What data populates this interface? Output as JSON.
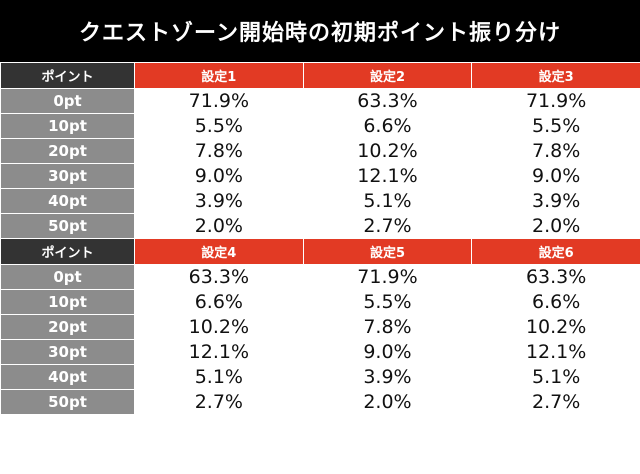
{
  "title": "クエストゾーン開始時の初期ポイント振り分け",
  "row_header_label": "ポイント",
  "blocks": [
    {
      "settings": [
        "設定1",
        "設定2",
        "設定3"
      ],
      "rows": [
        {
          "label": "0pt",
          "values": [
            "71.9%",
            "63.3%",
            "71.9%"
          ]
        },
        {
          "label": "10pt",
          "values": [
            "5.5%",
            "6.6%",
            "5.5%"
          ]
        },
        {
          "label": "20pt",
          "values": [
            "7.8%",
            "10.2%",
            "7.8%"
          ]
        },
        {
          "label": "30pt",
          "values": [
            "9.0%",
            "12.1%",
            "9.0%"
          ]
        },
        {
          "label": "40pt",
          "values": [
            "3.9%",
            "5.1%",
            "3.9%"
          ]
        },
        {
          "label": "50pt",
          "values": [
            "2.0%",
            "2.7%",
            "2.0%"
          ]
        }
      ]
    },
    {
      "settings": [
        "設定4",
        "設定5",
        "設定6"
      ],
      "rows": [
        {
          "label": "0pt",
          "values": [
            "63.3%",
            "71.9%",
            "63.3%"
          ]
        },
        {
          "label": "10pt",
          "values": [
            "6.6%",
            "5.5%",
            "6.6%"
          ]
        },
        {
          "label": "20pt",
          "values": [
            "10.2%",
            "7.8%",
            "10.2%"
          ]
        },
        {
          "label": "30pt",
          "values": [
            "12.1%",
            "9.0%",
            "12.1%"
          ]
        },
        {
          "label": "40pt",
          "values": [
            "5.1%",
            "3.9%",
            "5.1%"
          ]
        },
        {
          "label": "50pt",
          "values": [
            "2.7%",
            "2.0%",
            "2.7%"
          ]
        }
      ]
    }
  ],
  "colors": {
    "title_bg": "#000000",
    "setting_header_bg": "#e23a24",
    "row_header_bg": "#8c8c8c",
    "corner_bg": "#333333"
  }
}
